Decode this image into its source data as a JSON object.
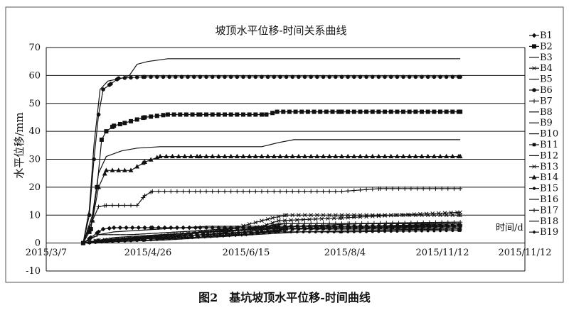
{
  "chart_data": {
    "type": "line",
    "title": "坡顶水平位移-时间关系曲线",
    "ylabel": "水平位移/mm",
    "xlabel": "时间/d",
    "ylim": [
      -10,
      70
    ],
    "yticks": [
      -10,
      0,
      10,
      20,
      30,
      40,
      50,
      60,
      70
    ],
    "xlim": [
      "2015-03-07",
      "2016-01-12"
    ],
    "xticks": [
      "2015/3/7",
      "2015/4/26",
      "2015/6/15",
      "2015/8/4",
      "2015/11/12",
      "2015/11/12"
    ],
    "grid": true,
    "legend_position": "right",
    "series": [
      {
        "name": "B1",
        "marker": "diamond",
        "points": [
          [
            "2015-03-31",
            0
          ],
          [
            "2015-04-05",
            2
          ],
          [
            "2015-04-10",
            4
          ],
          [
            "2015-04-13",
            5
          ],
          [
            "2015-04-20",
            5.5
          ],
          [
            "2015-05-15",
            5.5
          ],
          [
            "2015-06-15",
            5.5
          ],
          [
            "2015-07-30",
            5.5
          ],
          [
            "2015-08-05",
            6
          ],
          [
            "2015-09-15",
            6
          ],
          [
            "2015-12-01",
            6.5
          ]
        ]
      },
      {
        "name": "B2",
        "marker": "square",
        "points": [
          [
            "2015-03-31",
            0
          ],
          [
            "2015-04-05",
            5
          ],
          [
            "2015-04-09",
            20
          ],
          [
            "2015-04-12",
            37
          ],
          [
            "2015-04-15",
            40
          ],
          [
            "2015-04-20",
            42
          ],
          [
            "2015-04-27",
            43
          ],
          [
            "2015-05-10",
            45
          ],
          [
            "2015-05-25",
            46
          ],
          [
            "2015-06-15",
            46
          ],
          [
            "2015-07-28",
            46
          ],
          [
            "2015-08-04",
            47
          ],
          [
            "2015-09-15",
            47
          ],
          [
            "2015-12-01",
            47
          ]
        ]
      },
      {
        "name": "B3",
        "marker": "none",
        "points": [
          [
            "2015-03-31",
            0
          ],
          [
            "2015-04-10",
            3
          ],
          [
            "2015-04-20",
            4
          ],
          [
            "2015-05-20",
            5
          ],
          [
            "2015-06-20",
            6
          ],
          [
            "2015-07-28",
            6
          ],
          [
            "2015-08-05",
            7
          ],
          [
            "2015-09-20",
            7
          ],
          [
            "2015-12-01",
            7
          ]
        ]
      },
      {
        "name": "B4",
        "marker": "x",
        "points": [
          [
            "2015-03-31",
            0
          ],
          [
            "2015-04-10",
            1
          ],
          [
            "2015-05-10",
            2
          ],
          [
            "2015-06-15",
            4
          ],
          [
            "2015-07-20",
            5
          ],
          [
            "2015-08-05",
            8
          ],
          [
            "2015-09-15",
            9
          ],
          [
            "2015-10-20",
            10
          ],
          [
            "2015-12-01",
            11
          ]
        ]
      },
      {
        "name": "B5",
        "marker": "bar",
        "points": [
          [
            "2015-03-31",
            0
          ],
          [
            "2015-04-10",
            3
          ],
          [
            "2015-05-01",
            3
          ],
          [
            "2015-06-01",
            4
          ],
          [
            "2015-07-01",
            5
          ],
          [
            "2015-08-01",
            6
          ],
          [
            "2015-09-01",
            6
          ],
          [
            "2015-12-01",
            6
          ]
        ]
      },
      {
        "name": "B6",
        "marker": "circle",
        "points": [
          [
            "2015-03-31",
            0
          ],
          [
            "2015-04-04",
            10
          ],
          [
            "2015-04-07",
            30
          ],
          [
            "2015-04-10",
            46
          ],
          [
            "2015-04-13",
            55
          ],
          [
            "2015-04-18",
            57
          ],
          [
            "2015-04-23",
            59
          ],
          [
            "2015-05-10",
            59.5
          ],
          [
            "2015-06-15",
            59.5
          ],
          [
            "2015-09-15",
            59.5
          ],
          [
            "2015-12-01",
            59.5
          ]
        ]
      },
      {
        "name": "B7",
        "marker": "plus",
        "points": [
          [
            "2015-03-31",
            0
          ],
          [
            "2015-04-06",
            8
          ],
          [
            "2015-04-10",
            13
          ],
          [
            "2015-04-15",
            13.5
          ],
          [
            "2015-05-05",
            13.5
          ],
          [
            "2015-05-10",
            17
          ],
          [
            "2015-05-15",
            18.5
          ],
          [
            "2015-06-15",
            18.5
          ],
          [
            "2015-09-15",
            18.5
          ],
          [
            "2015-10-10",
            19.5
          ],
          [
            "2015-12-01",
            19.5
          ]
        ]
      },
      {
        "name": "B8",
        "marker": "none",
        "points": [
          [
            "2015-03-31",
            0
          ],
          [
            "2015-04-06",
            10
          ],
          [
            "2015-04-10",
            25
          ],
          [
            "2015-04-15",
            31
          ],
          [
            "2015-04-25",
            33
          ],
          [
            "2015-05-05",
            34
          ],
          [
            "2015-05-20",
            34.5
          ],
          [
            "2015-06-15",
            34.5
          ],
          [
            "2015-07-25",
            34.5
          ],
          [
            "2015-08-05",
            36
          ],
          [
            "2015-08-15",
            37
          ],
          [
            "2015-12-01",
            37
          ]
        ]
      },
      {
        "name": "B9",
        "marker": "none",
        "points": [
          [
            "2015-03-31",
            0
          ],
          [
            "2015-04-04",
            12
          ],
          [
            "2015-04-07",
            35
          ],
          [
            "2015-04-11",
            55
          ],
          [
            "2015-04-16",
            58
          ],
          [
            "2015-04-25",
            59
          ],
          [
            "2015-04-30",
            60
          ],
          [
            "2015-05-05",
            64
          ],
          [
            "2015-05-12",
            65
          ],
          [
            "2015-05-25",
            66
          ],
          [
            "2015-06-15",
            66
          ],
          [
            "2015-09-15",
            66
          ],
          [
            "2015-12-01",
            66
          ]
        ]
      },
      {
        "name": "B10",
        "marker": "none",
        "points": [
          [
            "2015-03-31",
            0
          ],
          [
            "2015-04-15",
            1
          ],
          [
            "2015-05-15",
            2
          ],
          [
            "2015-06-15",
            3
          ],
          [
            "2015-07-15",
            4
          ],
          [
            "2015-08-15",
            6
          ],
          [
            "2015-10-01",
            7
          ],
          [
            "2015-12-01",
            7
          ]
        ]
      },
      {
        "name": "B11",
        "marker": "square-small",
        "points": [
          [
            "2015-03-31",
            0
          ],
          [
            "2015-04-20",
            1
          ],
          [
            "2015-05-20",
            2
          ],
          [
            "2015-06-20",
            3
          ],
          [
            "2015-07-25",
            4
          ],
          [
            "2015-08-10",
            5
          ],
          [
            "2015-09-20",
            5.5
          ],
          [
            "2015-12-01",
            6
          ]
        ]
      },
      {
        "name": "B12",
        "marker": "none",
        "points": [
          [
            "2015-03-31",
            0
          ],
          [
            "2015-04-20",
            1.5
          ],
          [
            "2015-05-25",
            3
          ],
          [
            "2015-06-25",
            4
          ],
          [
            "2015-07-30",
            5
          ],
          [
            "2015-09-01",
            5.5
          ],
          [
            "2015-12-01",
            5.5
          ]
        ]
      },
      {
        "name": "B13",
        "marker": "x",
        "points": [
          [
            "2015-03-31",
            0
          ],
          [
            "2015-04-10",
            1
          ],
          [
            "2015-05-05",
            2
          ],
          [
            "2015-06-05",
            3
          ],
          [
            "2015-07-05",
            5
          ],
          [
            "2015-08-01",
            9
          ],
          [
            "2015-08-10",
            10
          ],
          [
            "2015-09-15",
            10
          ],
          [
            "2015-12-01",
            10
          ]
        ]
      },
      {
        "name": "B14",
        "marker": "triangle",
        "points": [
          [
            "2015-03-31",
            0
          ],
          [
            "2015-04-06",
            8
          ],
          [
            "2015-04-10",
            20
          ],
          [
            "2015-04-15",
            26
          ],
          [
            "2015-05-01",
            26
          ],
          [
            "2015-05-10",
            29
          ],
          [
            "2015-05-20",
            31
          ],
          [
            "2015-06-15",
            31
          ],
          [
            "2015-09-15",
            31
          ],
          [
            "2015-12-01",
            31
          ]
        ]
      },
      {
        "name": "B15",
        "marker": "dot",
        "points": [
          [
            "2015-03-31",
            0
          ],
          [
            "2015-04-15",
            0.5
          ],
          [
            "2015-05-10",
            1
          ],
          [
            "2015-06-10",
            2
          ],
          [
            "2015-07-10",
            3
          ],
          [
            "2015-08-05",
            4
          ],
          [
            "2015-09-15",
            4
          ],
          [
            "2015-12-01",
            4.5
          ]
        ]
      },
      {
        "name": "B16",
        "marker": "none",
        "points": [
          [
            "2015-03-31",
            0
          ],
          [
            "2015-04-20",
            2
          ],
          [
            "2015-05-20",
            3
          ],
          [
            "2015-06-20",
            4
          ],
          [
            "2015-07-20",
            5
          ],
          [
            "2015-08-20",
            6
          ],
          [
            "2015-10-01",
            6
          ],
          [
            "2015-12-01",
            7
          ]
        ]
      },
      {
        "name": "B17",
        "marker": "plus",
        "points": [
          [
            "2015-03-31",
            0
          ],
          [
            "2015-04-20",
            1
          ],
          [
            "2015-05-20",
            2
          ],
          [
            "2015-06-20",
            3
          ],
          [
            "2015-07-28",
            6
          ],
          [
            "2015-08-10",
            7
          ],
          [
            "2015-09-20",
            7
          ],
          [
            "2015-12-01",
            7.5
          ]
        ]
      },
      {
        "name": "B18",
        "marker": "none",
        "points": [
          [
            "2015-03-31",
            0
          ],
          [
            "2015-04-20",
            0.5
          ],
          [
            "2015-05-20",
            1
          ],
          [
            "2015-06-20",
            2
          ],
          [
            "2015-07-20",
            3
          ],
          [
            "2015-08-20",
            4
          ],
          [
            "2015-10-01",
            4.5
          ],
          [
            "2015-12-01",
            5
          ]
        ]
      },
      {
        "name": "B19",
        "marker": "diamond-small",
        "points": [
          [
            "2015-03-31",
            0
          ],
          [
            "2015-04-10",
            1
          ],
          [
            "2015-05-10",
            1.5
          ],
          [
            "2015-06-10",
            2
          ],
          [
            "2015-07-15",
            3
          ],
          [
            "2015-08-10",
            5
          ],
          [
            "2015-09-15",
            5
          ],
          [
            "2015-12-01",
            5
          ]
        ]
      }
    ]
  },
  "caption": "图2　基坑坡顶水平位移-时间曲线"
}
